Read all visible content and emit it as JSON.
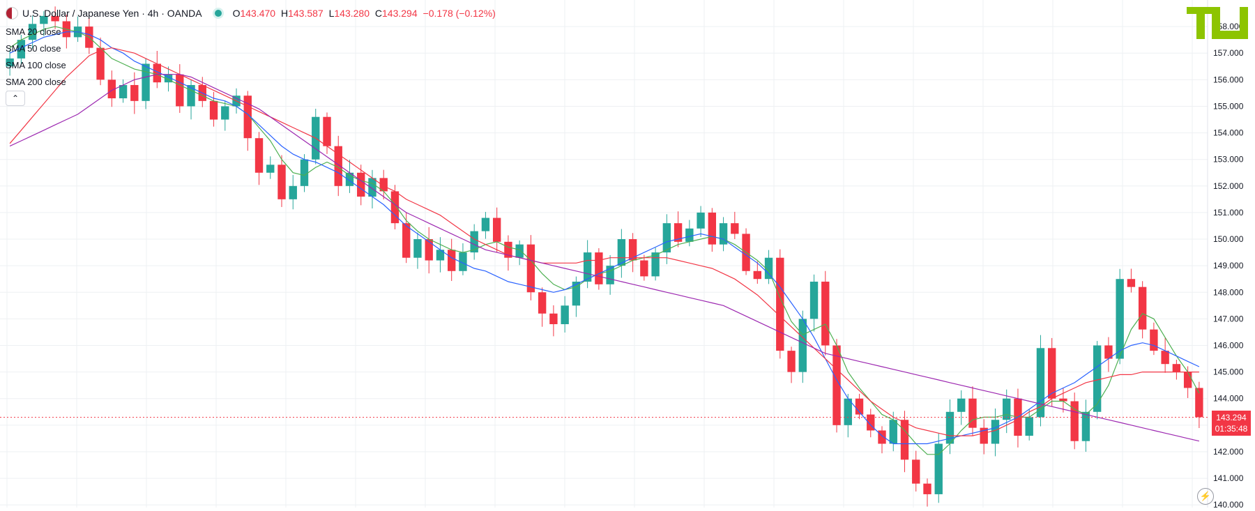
{
  "header": {
    "title": "U.S. Dollar / Japanese Yen · 4h · OANDA",
    "ohlc": {
      "o_label": "O",
      "o": "143.470",
      "h_label": "H",
      "h": "143.587",
      "l_label": "L",
      "l": "143.280",
      "c_label": "C",
      "c": "143.294",
      "change": "−0.178 (−0.12%)"
    }
  },
  "legend": [
    {
      "label": "SMA 20 close",
      "color": "#4caf50"
    },
    {
      "label": "SMA 50 close",
      "color": "#2962ff"
    },
    {
      "label": "SMA 100 close",
      "color": "#f23645"
    },
    {
      "label": "SMA 200 close",
      "color": "#9c27b0"
    }
  ],
  "collapse_icon": "chevron-up-icon",
  "logo_text": "TU",
  "last_price": {
    "price": "143.294",
    "countdown": "01:35:48"
  },
  "colors": {
    "up": "#26a69a",
    "down": "#f23645",
    "grid": "#eef0f3",
    "axis_text": "#131722"
  },
  "chart_data": {
    "type": "candlestick",
    "y_axis": {
      "ticks": [
        "140.000",
        "141.000",
        "142.000",
        "143.000",
        "144.000",
        "145.000",
        "146.000",
        "147.000",
        "148.000",
        "149.000",
        "150.000",
        "151.000",
        "152.000",
        "153.000",
        "154.000",
        "155.000",
        "156.000",
        "157.000",
        "158.000"
      ],
      "ylim": [
        139.9,
        159.0
      ],
      "position": "right"
    },
    "close_series": [
      156.8,
      157.5,
      158.1,
      158.4,
      158.2,
      157.6,
      158.0,
      157.2,
      156.0,
      155.3,
      155.8,
      155.2,
      156.6,
      155.9,
      156.2,
      155.0,
      155.8,
      155.2,
      154.5,
      155.0,
      155.4,
      153.8,
      152.5,
      152.8,
      151.5,
      152.0,
      153.0,
      154.6,
      153.5,
      152.0,
      152.5,
      151.6,
      152.3,
      151.8,
      150.6,
      149.3,
      150.0,
      149.2,
      149.6,
      148.8,
      149.5,
      150.3,
      150.8,
      149.9,
      149.3,
      149.8,
      148.0,
      147.2,
      146.8,
      147.5,
      148.4,
      149.5,
      148.3,
      149.0,
      150.0,
      149.2,
      148.6,
      149.5,
      150.6,
      149.9,
      150.4,
      151.0,
      149.8,
      150.6,
      150.2,
      148.8,
      148.5,
      149.3,
      145.8,
      145.0,
      147.0,
      148.4,
      146.0,
      143.0,
      144.0,
      143.4,
      142.8,
      142.3,
      143.2,
      141.7,
      140.8,
      140.4,
      142.3,
      143.5,
      144.0,
      142.9,
      142.3,
      143.2,
      144.0,
      142.6,
      143.3,
      145.9,
      144.0,
      143.9,
      142.4,
      143.5,
      146.0,
      145.5,
      148.5,
      148.2,
      146.6,
      145.8,
      145.3,
      145.0,
      144.4,
      143.3
    ],
    "sma20": [
      157.2,
      157.5,
      157.7,
      157.9,
      158.0,
      157.9,
      157.8,
      157.6,
      157.2,
      156.8,
      156.6,
      156.4,
      156.3,
      156.2,
      156.0,
      155.8,
      155.6,
      155.4,
      155.2,
      155.1,
      155.0,
      154.7,
      154.2,
      153.7,
      153.0,
      152.5,
      152.4,
      152.7,
      152.9,
      152.7,
      152.4,
      152.2,
      152.1,
      151.8,
      151.3,
      150.7,
      150.3,
      150.0,
      149.8,
      149.6,
      149.5,
      149.6,
      149.8,
      149.9,
      149.7,
      149.6,
      149.2,
      148.7,
      148.3,
      148.1,
      148.2,
      148.5,
      148.7,
      148.8,
      149.0,
      149.2,
      149.3,
      149.4,
      149.6,
      149.8,
      149.9,
      150.0,
      150.1,
      150.0,
      149.8,
      149.5,
      149.2,
      148.8,
      147.8,
      146.9,
      146.4,
      146.6,
      146.8,
      146.0,
      145.0,
      144.4,
      143.9,
      143.4,
      143.2,
      142.8,
      142.3,
      141.9,
      141.9,
      142.3,
      142.8,
      143.2,
      143.3,
      143.3,
      143.4,
      143.3,
      143.3,
      143.6,
      143.9,
      143.9,
      143.6,
      143.4,
      143.8,
      144.5,
      145.6,
      146.6,
      147.2,
      147.0,
      146.3,
      145.6,
      145.0,
      144.2
    ],
    "sma50": [
      157.0,
      157.2,
      157.4,
      157.6,
      157.7,
      157.8,
      157.8,
      157.7,
      157.5,
      157.2,
      157.0,
      156.7,
      156.5,
      156.3,
      156.1,
      155.9,
      155.7,
      155.5,
      155.3,
      155.2,
      155.0,
      154.7,
      154.3,
      153.9,
      153.5,
      153.2,
      153.0,
      152.9,
      152.7,
      152.5,
      152.2,
      151.9,
      151.6,
      151.3,
      150.9,
      150.5,
      150.2,
      149.9,
      149.6,
      149.3,
      149.1,
      148.9,
      148.8,
      148.6,
      148.4,
      148.3,
      148.2,
      148.1,
      148.0,
      148.1,
      148.3,
      148.5,
      148.7,
      148.9,
      149.1,
      149.3,
      149.5,
      149.7,
      149.9,
      150.0,
      150.1,
      150.2,
      150.1,
      150.0,
      149.7,
      149.4,
      149.1,
      148.7,
      148.2,
      147.6,
      147.0,
      146.3,
      145.5,
      144.7,
      144.0,
      143.5,
      143.0,
      142.6,
      142.3,
      142.3,
      142.3,
      142.3,
      142.4,
      142.5,
      142.6,
      142.7,
      142.8,
      142.9,
      143.1,
      143.3,
      143.6,
      143.9,
      144.2,
      144.4,
      144.6,
      144.9,
      145.2,
      145.5,
      145.8,
      146.0,
      146.1,
      146.0,
      145.8,
      145.6,
      145.4,
      145.2
    ],
    "sma100": [
      153.6,
      154.1,
      154.6,
      155.1,
      155.6,
      156.1,
      156.5,
      156.9,
      157.1,
      157.2,
      157.1,
      157.0,
      156.8,
      156.6,
      156.4,
      156.2,
      156.0,
      155.8,
      155.6,
      155.4,
      155.2,
      155.0,
      154.8,
      154.6,
      154.4,
      154.2,
      154.0,
      153.8,
      153.5,
      153.2,
      152.9,
      152.6,
      152.3,
      152.0,
      151.8,
      151.5,
      151.3,
      151.1,
      150.9,
      150.6,
      150.3,
      150.0,
      149.8,
      149.6,
      149.4,
      149.3,
      149.2,
      149.1,
      149.1,
      149.1,
      149.1,
      149.2,
      149.2,
      149.3,
      149.3,
      149.3,
      149.3,
      149.3,
      149.3,
      149.2,
      149.1,
      149.0,
      148.9,
      148.7,
      148.5,
      148.2,
      147.9,
      147.5,
      147.1,
      146.7,
      146.3,
      145.9,
      145.5,
      145.1,
      144.7,
      144.3,
      143.9,
      143.6,
      143.3,
      143.1,
      142.9,
      142.8,
      142.7,
      142.6,
      142.6,
      142.6,
      142.7,
      142.8,
      143.0,
      143.2,
      143.5,
      143.7,
      144.0,
      144.2,
      144.4,
      144.6,
      144.7,
      144.8,
      144.9,
      144.9,
      145.0,
      145.0,
      145.0,
      145.0,
      145.0,
      145.0
    ],
    "sma200": [
      153.5,
      153.7,
      153.9,
      154.1,
      154.3,
      154.5,
      154.7,
      155.0,
      155.3,
      155.6,
      155.8,
      156.0,
      156.1,
      156.2,
      156.2,
      156.2,
      156.1,
      155.9,
      155.7,
      155.5,
      155.3,
      155.1,
      154.9,
      154.6,
      154.3,
      154.0,
      153.7,
      153.4,
      153.1,
      152.8,
      152.5,
      152.2,
      151.9,
      151.6,
      151.3,
      151.0,
      150.8,
      150.6,
      150.4,
      150.2,
      150.0,
      149.8,
      149.6,
      149.5,
      149.4,
      149.3,
      149.2,
      149.1,
      149.0,
      148.9,
      148.8,
      148.7,
      148.6,
      148.5,
      148.4,
      148.3,
      148.2,
      148.1,
      148.0,
      147.9,
      147.8,
      147.7,
      147.6,
      147.5,
      147.3,
      147.1,
      146.9,
      146.7,
      146.5,
      146.3,
      146.1,
      145.9,
      145.7,
      145.6,
      145.5,
      145.4,
      145.3,
      145.2,
      145.1,
      145.0,
      144.9,
      144.8,
      144.7,
      144.6,
      144.5,
      144.4,
      144.3,
      144.2,
      144.1,
      144.0,
      143.9,
      143.8,
      143.7,
      143.6,
      143.5,
      143.4,
      143.3,
      143.2,
      143.1,
      143.0,
      142.9,
      142.8,
      142.7,
      142.6,
      142.5,
      142.4
    ]
  }
}
